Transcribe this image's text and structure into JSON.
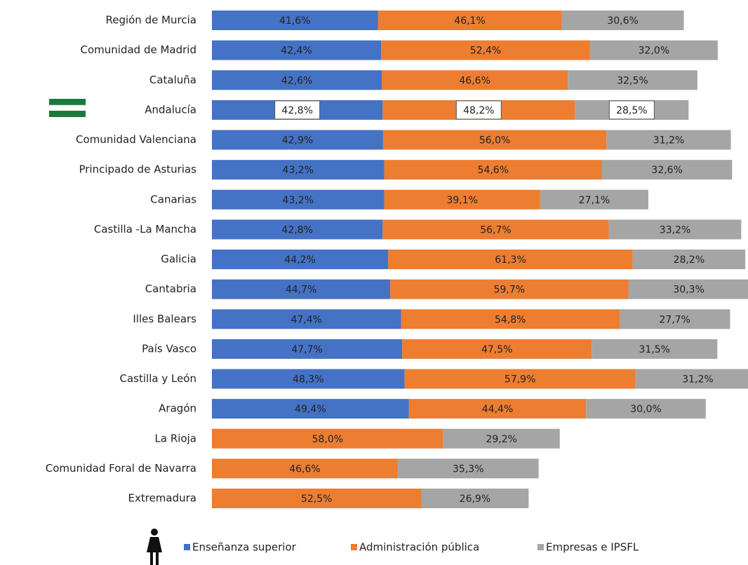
{
  "chart_data": {
    "type": "bar",
    "orientation": "horizontal",
    "stacked": true,
    "categories": [
      "Región de Murcia",
      "Comunidad de Madrid",
      "Cataluña",
      "Andalucía",
      "Comunidad Valenciana",
      "Principado de Asturias",
      "Canarias",
      "Castilla -La Mancha",
      "Galicia",
      "Cantabria",
      "Illes Balears",
      "País Vasco",
      "Castilla y León",
      "Aragón",
      "La Rioja",
      "Comunidad Foral de Navarra",
      "Extremadura"
    ],
    "highlight": 3,
    "legend": "bottom",
    "series": [
      {
        "name": "Enseñanza superior",
        "color": "#4472c4",
        "values": [
          41.6,
          42.4,
          42.6,
          42.8,
          42.9,
          43.2,
          43.2,
          42.8,
          44.2,
          44.7,
          47.4,
          47.7,
          48.3,
          49.4,
          null,
          null,
          null
        ],
        "value_labels": [
          "41,6%",
          "42,4%",
          "42,6%",
          "42,8%",
          "42,9%",
          "43,2%",
          "43,2%",
          "42,8%",
          "44,2%",
          "44,7%",
          "47,4%",
          "47,7%",
          "48,3%",
          "49,4%",
          null,
          null,
          null
        ]
      },
      {
        "name": "Administración pública",
        "color": "#ed7d31",
        "values": [
          46.1,
          52.4,
          46.6,
          48.2,
          56.0,
          54.6,
          39.1,
          56.7,
          61.3,
          59.7,
          54.8,
          47.5,
          57.9,
          44.4,
          58.0,
          46.6,
          52.5
        ],
        "value_labels": [
          "46,1%",
          "52,4%",
          "46,6%",
          "48,2%",
          "56,0%",
          "54,6%",
          "39,1%",
          "56,7%",
          "61,3%",
          "59,7%",
          "54,8%",
          "47,5%",
          "57,9%",
          "44,4%",
          "58,0%",
          "46,6%",
          "52,5%"
        ]
      },
      {
        "name": "Empresas e IPSFL",
        "color": "#a5a5a5",
        "values": [
          30.6,
          32.0,
          32.5,
          28.5,
          31.2,
          32.6,
          27.1,
          33.2,
          28.2,
          30.3,
          27.7,
          31.5,
          31.2,
          30.0,
          29.2,
          35.3,
          26.9
        ],
        "value_labels": [
          "30,6%",
          "32,0%",
          "32,5%",
          "28,5%",
          "31,2%",
          "32,6%",
          "27,1%",
          "33,2%",
          "28,2%",
          "30,3%",
          "27,7%",
          "31,5%",
          "31,2%",
          "30,0%",
          "29,2%",
          "35,3%",
          "26,9%"
        ]
      }
    ]
  }
}
